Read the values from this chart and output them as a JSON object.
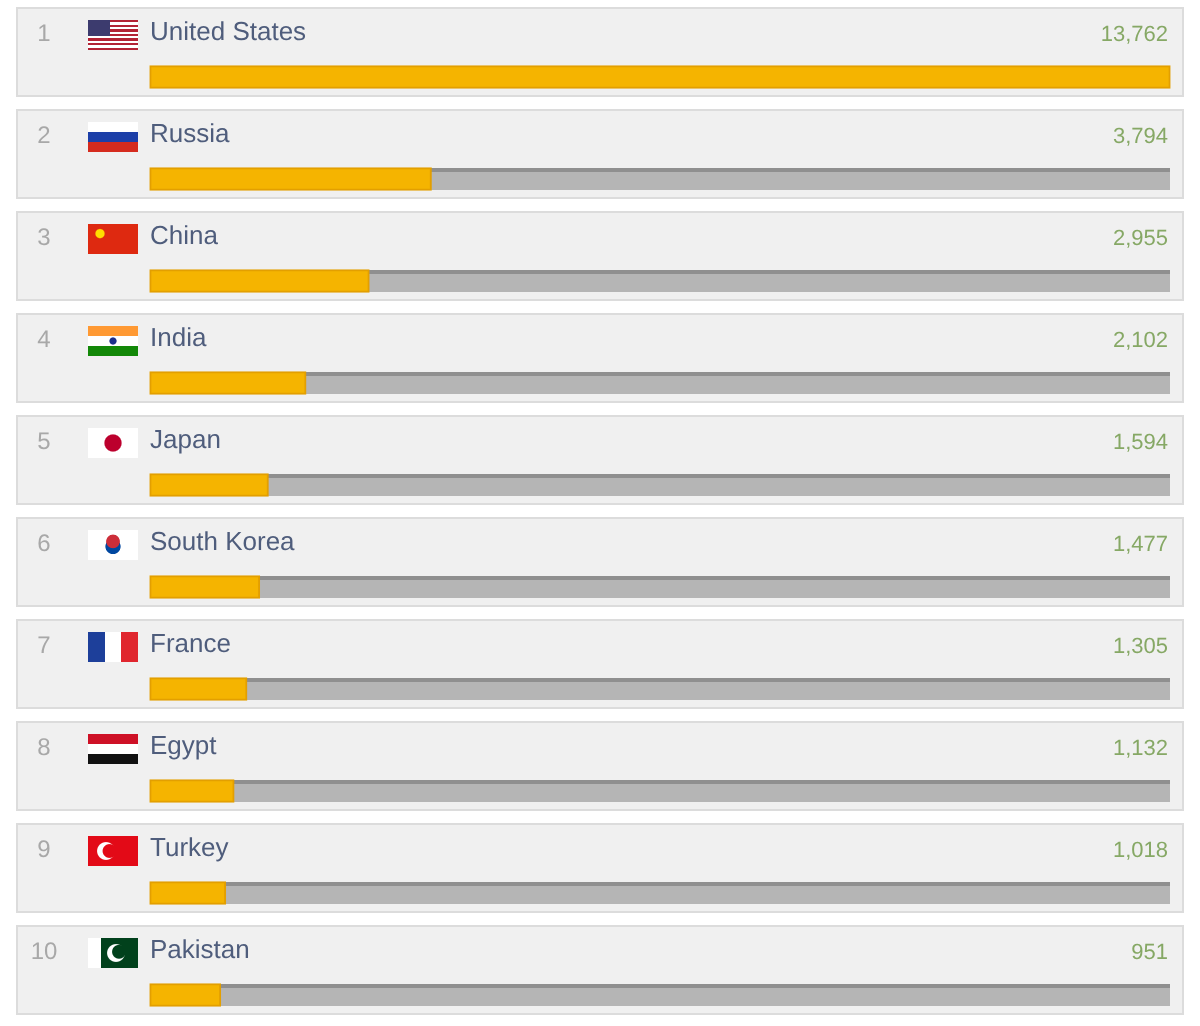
{
  "chart_data": {
    "type": "bar",
    "orientation": "horizontal",
    "categories": [
      "United States",
      "Russia",
      "China",
      "India",
      "Japan",
      "South Korea",
      "France",
      "Egypt",
      "Turkey",
      "Pakistan"
    ],
    "values": [
      13762,
      3794,
      2955,
      2102,
      1594,
      1477,
      1305,
      1132,
      1018,
      951
    ],
    "value_labels": [
      "13,762",
      "3,794",
      "2,955",
      "2,102",
      "1,594",
      "1,477",
      "1,305",
      "1,132",
      "1,018",
      "951"
    ],
    "color": "#f5b400",
    "xlim": [
      0,
      13762
    ],
    "tick_labels": "y",
    "annotations": [
      "1",
      "2",
      "3",
      "4",
      "5",
      "6",
      "7",
      "8",
      "9",
      "10"
    ]
  }
}
